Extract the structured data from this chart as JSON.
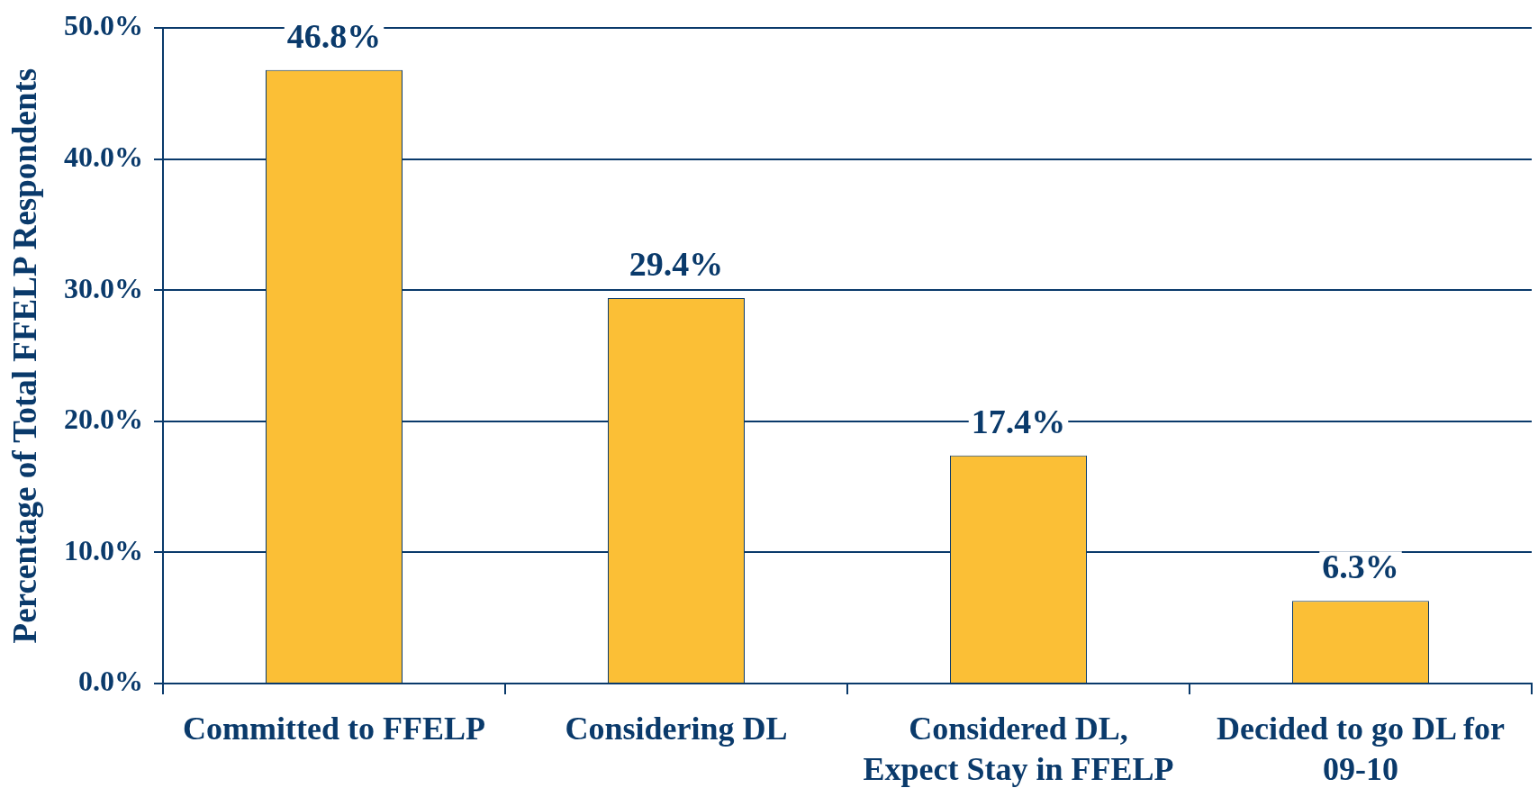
{
  "chart_data": {
    "type": "bar",
    "ylabel": "Percentage of Total FFELP Respondents",
    "categories": [
      "Committed to FFELP",
      "Considering DL",
      "Considered DL, Expect Stay in FFELP",
      "Decided to go DL for 09-10"
    ],
    "values": [
      46.8,
      29.4,
      17.4,
      6.3
    ],
    "value_labels": [
      "46.8%",
      "29.4%",
      "17.4%",
      "6.3%"
    ],
    "color": "#fbbf36",
    "ylim": [
      0,
      50
    ],
    "yticks": [
      {
        "value": 0,
        "label": "0.0%"
      },
      {
        "value": 10,
        "label": "10.0%"
      },
      {
        "value": 20,
        "label": "20.0%"
      },
      {
        "value": 30,
        "label": "30.0%"
      },
      {
        "value": 40,
        "label": "40.0%"
      },
      {
        "value": 50,
        "label": "50.0%"
      }
    ],
    "grid": "y",
    "legend": false
  }
}
